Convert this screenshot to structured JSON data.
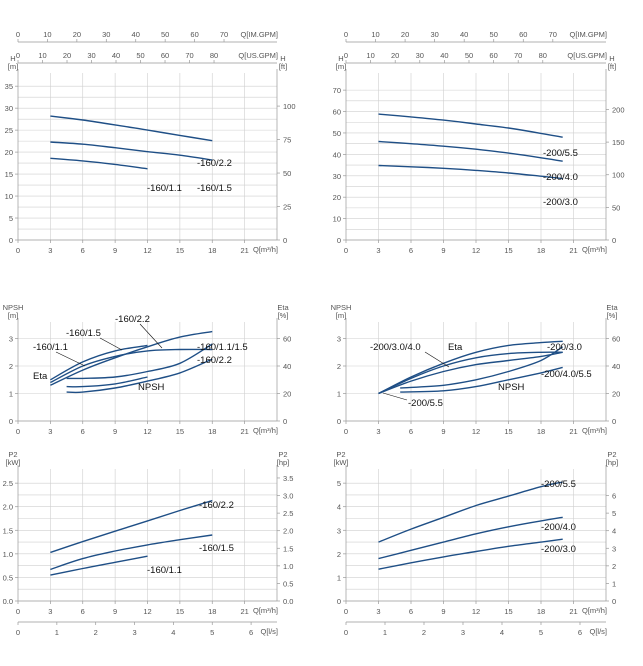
{
  "colors": {
    "curve": "#1f4f86",
    "grid": "#cfcfcf",
    "axis": "#999999"
  },
  "chart_data": [
    {
      "type": "line",
      "id": "h160",
      "x": {
        "ticks": [
          0,
          3,
          6,
          9,
          12,
          15,
          18,
          21
        ],
        "label": "Q[m³/h]",
        "range": [
          0,
          24
        ]
      },
      "y": {
        "ticks": [
          0,
          5,
          10,
          15,
          20,
          25,
          30,
          35
        ],
        "label": "H\n[m]",
        "range": [
          0,
          38
        ]
      },
      "y2": {
        "ticks": [
          0,
          25,
          50,
          75,
          100
        ],
        "label": "H\n[ft]",
        "range": [
          0,
          124.7
        ]
      },
      "top1": {
        "ticks": [
          0,
          10,
          20,
          30,
          40,
          50,
          60,
          70
        ],
        "label": "Q[IM.GPM]",
        "range": [
          0,
          88
        ]
      },
      "top2": {
        "ticks": [
          0,
          10,
          20,
          30,
          40,
          50,
          60,
          70,
          80
        ],
        "label": "Q[US.GPM]",
        "range": [
          0,
          105.7
        ]
      },
      "grid": true,
      "series": [
        {
          "name": "-160/2.2",
          "x": [
            3,
            6,
            9,
            12,
            15,
            18
          ],
          "y": [
            28.2,
            27.3,
            26.2,
            25.0,
            23.8,
            22.6
          ]
        },
        {
          "name": "-160/1.5",
          "x": [
            3,
            6,
            9,
            12,
            15,
            18
          ],
          "y": [
            22.3,
            21.8,
            21.0,
            20.1,
            19.3,
            18.2
          ]
        },
        {
          "name": "-160/1.1",
          "x": [
            3,
            6,
            9,
            12
          ],
          "y": [
            18.6,
            18.0,
            17.2,
            16.2
          ]
        }
      ]
    },
    {
      "type": "line",
      "id": "h200",
      "x": {
        "ticks": [
          0,
          3,
          6,
          9,
          12,
          15,
          18,
          21
        ],
        "label": "Q[m³/h]",
        "range": [
          0,
          24
        ]
      },
      "y": {
        "ticks": [
          0,
          10,
          20,
          30,
          40,
          50,
          60,
          70
        ],
        "label": "H\n[m]",
        "range": [
          0,
          78
        ]
      },
      "y2": {
        "ticks": [
          0,
          50,
          100,
          150,
          200
        ],
        "label": "H\n[ft]",
        "range": [
          0,
          255.9
        ]
      },
      "top1": {
        "ticks": [
          0,
          10,
          20,
          30,
          40,
          50,
          60,
          70
        ],
        "label": "Q[IM.GPM]",
        "range": [
          0,
          88
        ]
      },
      "top2": {
        "ticks": [
          0,
          10,
          20,
          30,
          40,
          50,
          60,
          70,
          80
        ],
        "label": "Q[US.GPM]",
        "range": [
          0,
          105.7
        ]
      },
      "grid": true,
      "series": [
        {
          "name": "-200/5.5",
          "x": [
            3,
            6,
            9,
            12,
            15,
            18,
            20
          ],
          "y": [
            58.8,
            57.5,
            56.0,
            54.2,
            52.3,
            49.8,
            48.0
          ]
        },
        {
          "name": "-200/4.0",
          "x": [
            3,
            6,
            9,
            12,
            15,
            18,
            20
          ],
          "y": [
            46.0,
            45.0,
            43.8,
            42.4,
            40.6,
            38.4,
            36.8
          ]
        },
        {
          "name": "-200/3.0",
          "x": [
            3,
            6,
            9,
            12,
            15,
            18,
            20
          ],
          "y": [
            34.8,
            34.2,
            33.5,
            32.5,
            31.3,
            29.8,
            28.7
          ]
        }
      ]
    },
    {
      "type": "line",
      "id": "eff160",
      "x": {
        "ticks": [
          0,
          3,
          6,
          9,
          12,
          15,
          18,
          21
        ],
        "label": "Q[m³/h]",
        "range": [
          0,
          24
        ]
      },
      "y": {
        "ticks": [
          0,
          1,
          2,
          3
        ],
        "label": "NPSH\n[m]",
        "range": [
          0,
          3.6
        ]
      },
      "y2": {
        "ticks": [
          0,
          20,
          40,
          60
        ],
        "label": "Eta\n[%]",
        "range": [
          0,
          72
        ]
      },
      "grid": true,
      "series": [
        {
          "name": "Eta -160/1.1",
          "axis": "y2",
          "x": [
            3,
            6,
            9,
            12
          ],
          "y": [
            30,
            43,
            51,
            55
          ]
        },
        {
          "name": "Eta -160/1.5",
          "axis": "y2",
          "x": [
            3,
            6,
            9,
            12,
            15,
            18
          ],
          "y": [
            28,
            40,
            47,
            51,
            52,
            52
          ]
        },
        {
          "name": "Eta -160/2.2",
          "axis": "y2",
          "x": [
            3,
            6,
            9,
            12,
            15,
            18
          ],
          "y": [
            26,
            37,
            46,
            54,
            61,
            65
          ]
        },
        {
          "name": "NPSH -160/1.1",
          "axis": "y",
          "x": [
            4.5,
            6,
            9,
            12
          ],
          "y": [
            1.25,
            1.25,
            1.35,
            1.6
          ]
        },
        {
          "name": "NPSH -160/1.5",
          "axis": "y",
          "x": [
            4.5,
            6,
            9,
            12,
            15,
            18
          ],
          "y": [
            1.55,
            1.55,
            1.6,
            1.8,
            2.1,
            2.8
          ]
        },
        {
          "name": "NPSH -160/2.2",
          "axis": "y",
          "x": [
            4.5,
            6,
            9,
            12,
            15,
            18
          ],
          "y": [
            1.05,
            1.05,
            1.2,
            1.45,
            1.75,
            2.25
          ]
        }
      ],
      "annotations": [
        "Eta",
        "NPSH",
        "-160/1.1",
        "-160/1.5",
        "-160/2.2",
        "-160/1.1/1.5",
        "-160/2.2"
      ]
    },
    {
      "type": "line",
      "id": "eff200",
      "x": {
        "ticks": [
          0,
          3,
          6,
          9,
          12,
          15,
          18,
          21
        ],
        "label": "Q[m³/h]",
        "range": [
          0,
          24
        ]
      },
      "y": {
        "ticks": [
          0,
          1,
          2,
          3
        ],
        "label": "NPSH\n[m]",
        "range": [
          0,
          3.6
        ]
      },
      "y2": {
        "ticks": [
          0,
          20,
          40,
          60
        ],
        "label": "Eta\n[%]",
        "range": [
          0,
          72
        ]
      },
      "grid": true,
      "series": [
        {
          "name": "Eta -200/3.0",
          "axis": "y2",
          "x": [
            3,
            6,
            9,
            12,
            15,
            18,
            20
          ],
          "y": [
            20,
            32,
            42,
            50,
            55,
            57,
            58
          ]
        },
        {
          "name": "Eta -200/4.0",
          "axis": "y2",
          "x": [
            3,
            6,
            9,
            12,
            15,
            18,
            20
          ],
          "y": [
            20,
            31,
            40,
            46,
            49,
            50,
            50
          ]
        },
        {
          "name": "Eta -200/5.5",
          "axis": "y2",
          "x": [
            3,
            6,
            9,
            12,
            15,
            18,
            20
          ],
          "y": [
            20,
            29,
            36,
            41,
            44,
            47,
            50
          ]
        },
        {
          "name": "NPSH -200/3.0",
          "axis": "y",
          "x": [
            5,
            9,
            12,
            15,
            18,
            20
          ],
          "y": [
            1.2,
            1.3,
            1.5,
            1.8,
            2.2,
            2.7
          ]
        },
        {
          "name": "NPSH -200/4.0/5.5",
          "axis": "y",
          "x": [
            5,
            9,
            12,
            15,
            18,
            20
          ],
          "y": [
            1.05,
            1.1,
            1.25,
            1.5,
            1.75,
            1.95
          ]
        }
      ],
      "annotations": [
        "Eta",
        "NPSH",
        "-200/3.0/4.0",
        "-200/3.0",
        "-200/4.0/5.5",
        "-200/5.5"
      ]
    },
    {
      "type": "line",
      "id": "p160",
      "x": {
        "ticks": [
          0,
          3,
          6,
          9,
          12,
          15,
          18,
          21
        ],
        "label": "Q[m³/h]",
        "range": [
          0,
          24
        ]
      },
      "y": {
        "ticks": [
          0,
          0.5,
          1.0,
          1.5,
          2.0,
          2.5
        ],
        "label": "P2\n[kW]",
        "range": [
          0,
          2.8
        ]
      },
      "y2": {
        "ticks": [
          0,
          0.5,
          1.0,
          1.5,
          2.0,
          2.5,
          3.0,
          3.5
        ],
        "label": "P2\n[hp]",
        "range": [
          0,
          3.755
        ]
      },
      "bottom2": {
        "ticks": [
          0,
          1,
          2,
          3,
          4,
          5,
          6
        ],
        "label": "Q[l/s]",
        "range": [
          0,
          6.667
        ]
      },
      "grid": true,
      "series": [
        {
          "name": "-160/2.2",
          "x": [
            3,
            6,
            9,
            12,
            15,
            18
          ],
          "y": [
            1.03,
            1.26,
            1.48,
            1.7,
            1.92,
            2.13
          ]
        },
        {
          "name": "-160/1.5",
          "x": [
            3,
            6,
            9,
            12,
            15,
            18
          ],
          "y": [
            0.67,
            0.9,
            1.06,
            1.19,
            1.3,
            1.4
          ]
        },
        {
          "name": "-160/1.1",
          "x": [
            3,
            6,
            9,
            12
          ],
          "y": [
            0.55,
            0.69,
            0.82,
            0.95
          ]
        }
      ]
    },
    {
      "type": "line",
      "id": "p200",
      "x": {
        "ticks": [
          0,
          3,
          6,
          9,
          12,
          15,
          18,
          21
        ],
        "label": "Q[m³/h]",
        "range": [
          0,
          24
        ]
      },
      "y": {
        "ticks": [
          0,
          1,
          2,
          3,
          4,
          5
        ],
        "label": "P2\n[kW]",
        "range": [
          0,
          5.6
        ]
      },
      "y2": {
        "ticks": [
          0,
          1,
          2,
          3,
          4,
          5,
          6
        ],
        "label": "P2\n[hp]",
        "range": [
          0,
          7.51
        ]
      },
      "bottom2": {
        "ticks": [
          0,
          1,
          2,
          3,
          4,
          5,
          6
        ],
        "label": "Q[l/s]",
        "range": [
          0,
          6.667
        ]
      },
      "grid": true,
      "series": [
        {
          "name": "-200/5.5",
          "x": [
            3,
            6,
            9,
            12,
            15,
            18,
            20
          ],
          "y": [
            2.5,
            3.05,
            3.55,
            4.05,
            4.45,
            4.85,
            5.05
          ]
        },
        {
          "name": "-200/4.0",
          "x": [
            3,
            6,
            9,
            12,
            15,
            18,
            20
          ],
          "y": [
            1.8,
            2.15,
            2.5,
            2.85,
            3.15,
            3.4,
            3.55
          ]
        },
        {
          "name": "-200/3.0",
          "x": [
            3,
            6,
            9,
            12,
            15,
            18,
            20
          ],
          "y": [
            1.35,
            1.62,
            1.87,
            2.1,
            2.32,
            2.5,
            2.62
          ]
        }
      ]
    }
  ]
}
